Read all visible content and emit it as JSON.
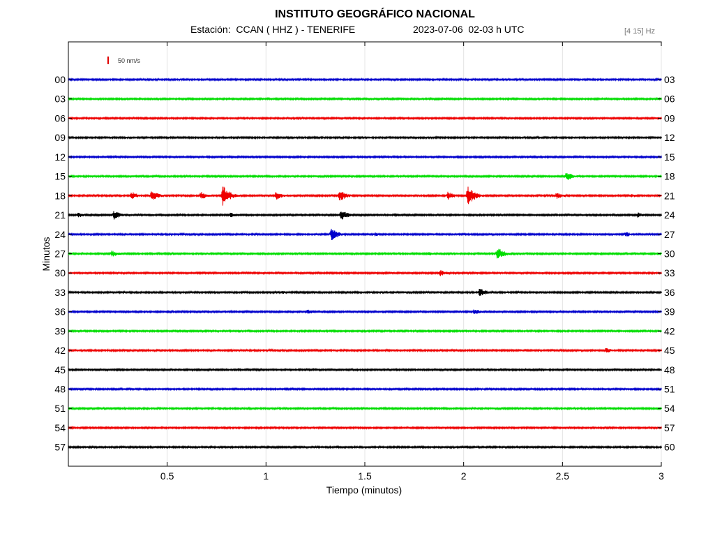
{
  "header": {
    "title": "INSTITUTO GEOGRÁFICO NACIONAL",
    "station": "Estación:  CCAN ( HHZ ) - TENERIFE",
    "datetime": "2023-07-06  02-03 h UTC",
    "filter": "[4 15] Hz"
  },
  "chart_data": {
    "type": "line",
    "title": "INSTITUTO GEOGRÁFICO NACIONAL",
    "xlabel": "Tiempo (minutos)",
    "ylabel": "Minutos",
    "xlim": [
      0,
      3
    ],
    "x_ticks": [
      "0.5",
      "1",
      "1.5",
      "2",
      "2.5",
      "3"
    ],
    "x_tick_values": [
      0.5,
      1,
      1.5,
      2,
      2.5,
      3
    ],
    "grid": true,
    "scale_bar_label": "50 nm/s",
    "scale_bar_color": "#e00000",
    "trace_colors": [
      "#0000cc",
      "#00dd00",
      "#ee0000",
      "#000000"
    ],
    "left_labels": [
      "00",
      "03",
      "06",
      "09",
      "12",
      "15",
      "18",
      "21",
      "24",
      "27",
      "30",
      "33",
      "36",
      "39",
      "42",
      "45",
      "48",
      "51",
      "54",
      "57"
    ],
    "right_labels": [
      "03",
      "06",
      "09",
      "12",
      "15",
      "18",
      "21",
      "24",
      "27",
      "30",
      "33",
      "36",
      "39",
      "42",
      "45",
      "48",
      "51",
      "54",
      "57",
      "60"
    ],
    "events": [
      {
        "row": 1,
        "x": 1.9,
        "amp": 2
      },
      {
        "row": 5,
        "x": 2.2,
        "amp": 2
      },
      {
        "row": 5,
        "x": 2.52,
        "amp": 7
      },
      {
        "row": 6,
        "x": 0.32,
        "amp": 6
      },
      {
        "row": 6,
        "x": 0.42,
        "amp": 8
      },
      {
        "row": 6,
        "x": 0.67,
        "amp": 6
      },
      {
        "row": 6,
        "x": 0.78,
        "amp": 16
      },
      {
        "row": 6,
        "x": 1.05,
        "amp": 6
      },
      {
        "row": 6,
        "x": 1.37,
        "amp": 9
      },
      {
        "row": 6,
        "x": 1.92,
        "amp": 6
      },
      {
        "row": 6,
        "x": 2.02,
        "amp": 15
      },
      {
        "row": 6,
        "x": 2.47,
        "amp": 5
      },
      {
        "row": 6,
        "x": 2.85,
        "amp": 3
      },
      {
        "row": 7,
        "x": 0.05,
        "amp": 4
      },
      {
        "row": 7,
        "x": 0.23,
        "amp": 7
      },
      {
        "row": 7,
        "x": 0.82,
        "amp": 4
      },
      {
        "row": 7,
        "x": 1.38,
        "amp": 8
      },
      {
        "row": 7,
        "x": 1.65,
        "amp": 3
      },
      {
        "row": 7,
        "x": 2.88,
        "amp": 4
      },
      {
        "row": 8,
        "x": 1.33,
        "amp": 9
      },
      {
        "row": 8,
        "x": 1.55,
        "amp": 3
      },
      {
        "row": 8,
        "x": 2.82,
        "amp": 4
      },
      {
        "row": 9,
        "x": 0.22,
        "amp": 5
      },
      {
        "row": 9,
        "x": 1.82,
        "amp": 3
      },
      {
        "row": 9,
        "x": 2.17,
        "amp": 10
      },
      {
        "row": 10,
        "x": 1.88,
        "amp": 5
      },
      {
        "row": 11,
        "x": 1.08,
        "amp": 3
      },
      {
        "row": 11,
        "x": 2.08,
        "amp": 7
      },
      {
        "row": 12,
        "x": 1.21,
        "amp": 4
      },
      {
        "row": 12,
        "x": 2.05,
        "amp": 5
      },
      {
        "row": 14,
        "x": 2.72,
        "amp": 4
      }
    ]
  }
}
